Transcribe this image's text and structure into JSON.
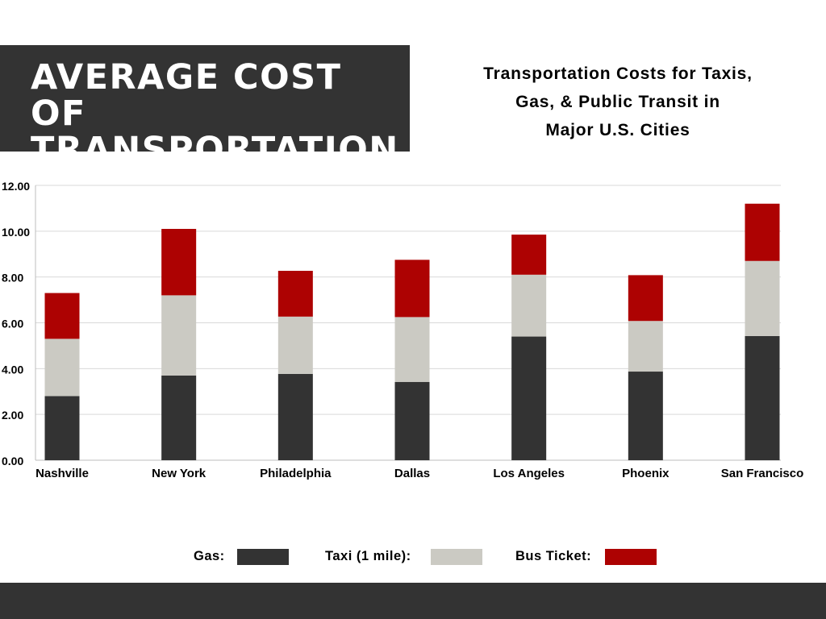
{
  "header": {
    "title_line1": "AVERAGE COST OF",
    "title_line2": "TRANSPORTATION",
    "subtitle_lines": [
      "Transportation Costs for Taxis,",
      "Gas, & Public Transit in",
      "Major U.S. Cities"
    ]
  },
  "legend": {
    "gas_label": "Gas:",
    "taxi_label": "Taxi (1 mile):",
    "bus_label": "Bus Ticket:"
  },
  "colors": {
    "gas": "#333333",
    "taxi": "#cbcac3",
    "bus": "#ad0202",
    "header_bg": "#333333"
  },
  "chart_data": {
    "type": "bar",
    "stacked": true,
    "title": "Transportation Costs for Taxis, Gas, & Public Transit in Major U.S. Cities",
    "categories": [
      "Nashville",
      "New York",
      "Philadelphia",
      "Dallas",
      "Los Angeles",
      "Phoenix",
      "San Francisco"
    ],
    "series": [
      {
        "name": "Gas:",
        "values": [
          2.8,
          3.7,
          3.77,
          3.42,
          5.4,
          3.87,
          5.42
        ]
      },
      {
        "name": "Taxi (1 mile):",
        "values": [
          2.5,
          3.5,
          2.5,
          2.83,
          2.7,
          2.21,
          3.28
        ]
      },
      {
        "name": "Bus Ticket:",
        "values": [
          2.0,
          2.9,
          2.0,
          2.5,
          1.75,
          2.0,
          2.5
        ]
      }
    ],
    "ylim": [
      0,
      12
    ],
    "yticks": [
      "0.00",
      "2.00",
      "4.00",
      "6.00",
      "8.00",
      "10.00",
      "12.00"
    ],
    "grid": true,
    "legend_position": "bottom"
  }
}
